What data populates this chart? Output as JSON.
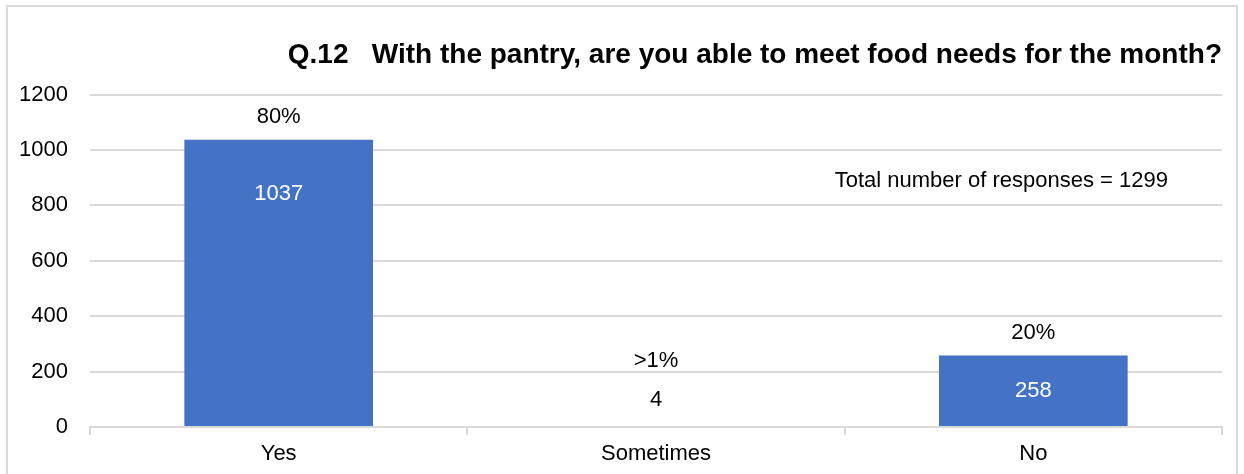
{
  "chart_data": {
    "type": "bar",
    "title": "Q.12   With the pantry, are you able to meet food needs for the month?",
    "categories": [
      "Yes",
      "Sometimes",
      "No"
    ],
    "values": [
      1037,
      4,
      258
    ],
    "color": "#4472c4",
    "ylim": [
      0,
      1200
    ],
    "yticks": [
      0,
      200,
      400,
      600,
      800,
      1000,
      1200
    ],
    "grid": "y",
    "data_labels": true,
    "annotations": [
      {
        "text": "80%",
        "x": "Yes",
        "y": 1037
      },
      {
        "text": ">1%",
        "x": "Sometimes",
        "y": 4
      },
      {
        "text": "20%",
        "x": "No",
        "y": 258
      },
      "Total number of responses = 1299"
    ]
  }
}
